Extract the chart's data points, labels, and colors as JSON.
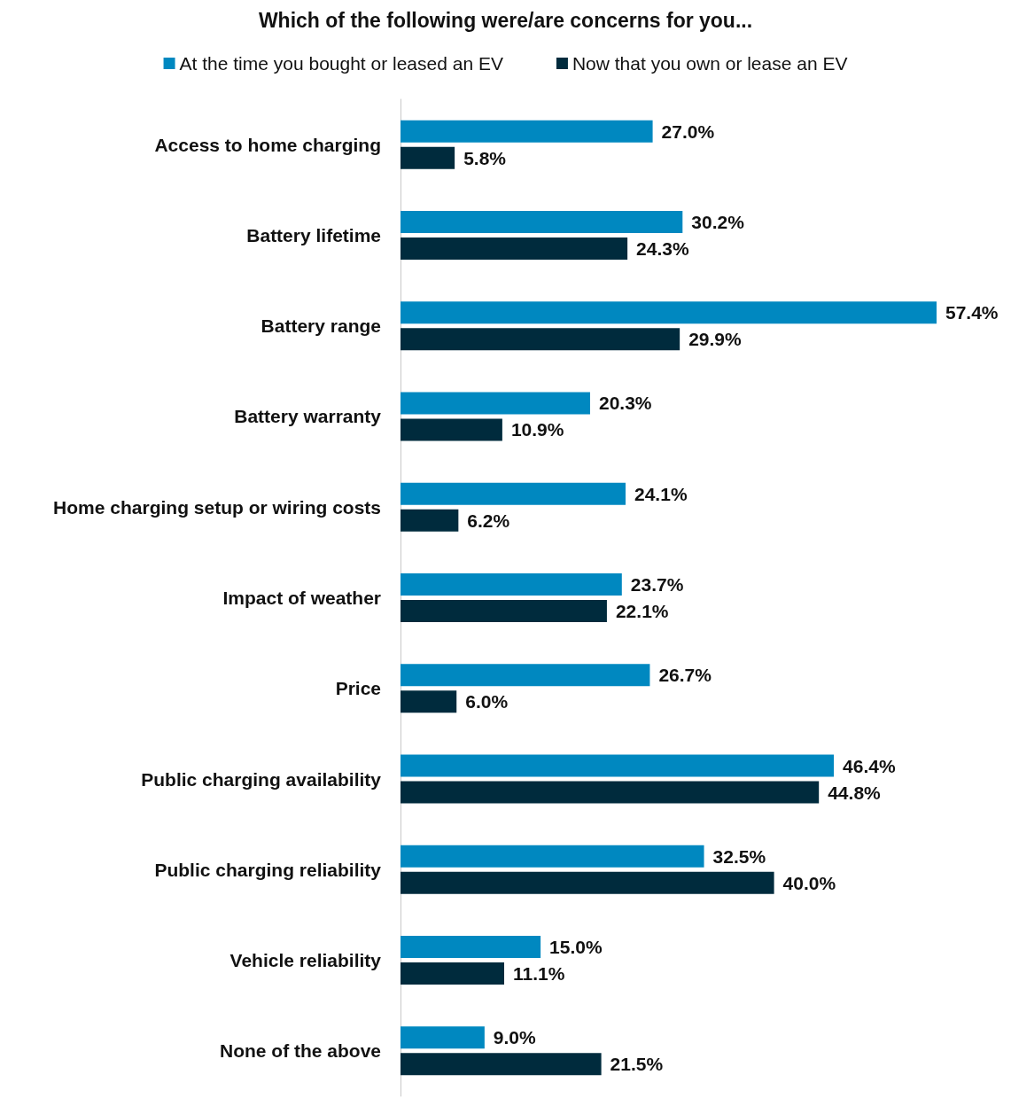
{
  "chart_data": {
    "type": "bar",
    "orientation": "horizontal",
    "title": "Which of the following were/are concerns for you...",
    "categories": [
      "Access to home charging",
      "Battery lifetime",
      "Battery range",
      "Battery warranty",
      "Home charging setup or wiring costs",
      "Impact of weather",
      "Price",
      "Public charging availability",
      "Public charging reliability",
      "Vehicle reliability",
      "None of the above"
    ],
    "series": [
      {
        "name": "At the time you bought or leased an EV",
        "color": "#0088c0",
        "values": [
          27.0,
          30.2,
          57.4,
          20.3,
          24.1,
          23.7,
          26.7,
          46.4,
          32.5,
          15.0,
          9.0
        ],
        "value_labels": [
          "27.0%",
          "30.2%",
          "57.4%",
          "20.3%",
          "24.1%",
          "23.7%",
          "26.7%",
          "46.4%",
          "32.5%",
          "15.0%",
          "9.0%"
        ]
      },
      {
        "name": "Now that you own or lease an EV",
        "color": "#002b3d",
        "values": [
          5.8,
          24.3,
          29.9,
          10.9,
          6.2,
          22.1,
          6.0,
          44.8,
          40.0,
          11.1,
          21.5
        ],
        "value_labels": [
          "5.8%",
          "24.3%",
          "29.9%",
          "10.9%",
          "6.2%",
          "22.1%",
          "6.0%",
          "44.8%",
          "40.0%",
          "11.1%",
          "21.5%"
        ]
      }
    ],
    "legend": "top",
    "tick_labels": "y"
  }
}
